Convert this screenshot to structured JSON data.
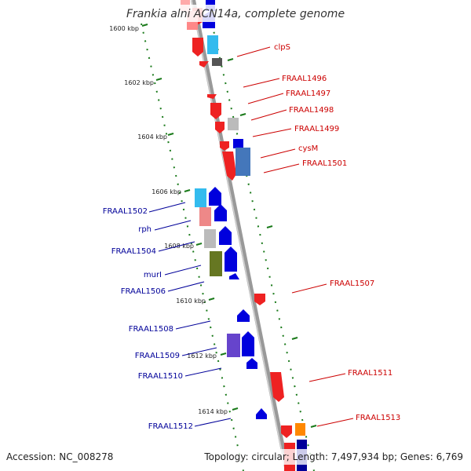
{
  "title": "Frankia alni ACN14a, complete genome",
  "accession": "Accession: NC_008278",
  "summary": "Topology: circular; Length: 7,497,934 bp; Genes: 6,769",
  "kbp_ticks": [
    "1600 kbp",
    "1602 kbp",
    "1604 kbp",
    "1606 kbp",
    "1608 kbp",
    "1610 kbp",
    "1612 kbp",
    "1614 kbp"
  ],
  "colors": {
    "forward_label": "#cc0000",
    "reverse_label": "#000099",
    "backbone": "#888888",
    "dots": "#1a7a1a"
  },
  "forward_genes": [
    "clpS",
    "FRAAL1496",
    "FRAAL1497",
    "FRAAL1498",
    "FRAAL1499",
    "cysM",
    "FRAAL1501",
    "FRAAL1507",
    "FRAAL1511",
    "FRAAL1513"
  ],
  "reverse_genes": [
    "FRAAL1502",
    "rph",
    "FRAAL1504",
    "murI",
    "FRAAL1506",
    "FRAAL1508",
    "FRAAL1509",
    "FRAAL1510",
    "FRAAL1512"
  ]
}
